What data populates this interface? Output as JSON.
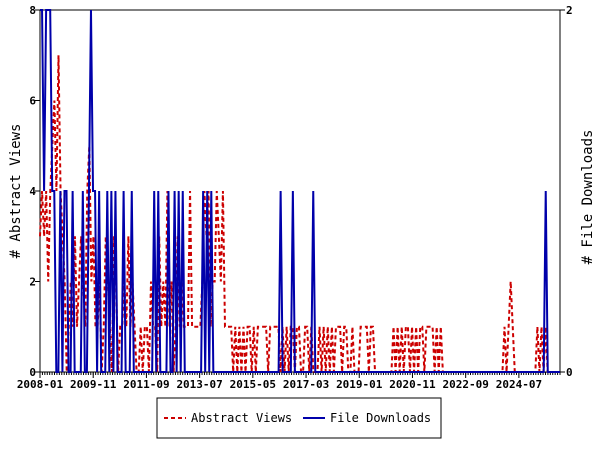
{
  "chart_data": {
    "type": "line",
    "title": "",
    "x_start": "2008-01",
    "x_end": "2025-12",
    "x_tick_labels": [
      "2008-01",
      "2009-11",
      "2011-09",
      "2013-07",
      "2015-05",
      "2017-03",
      "2019-01",
      "2020-11",
      "2022-09",
      "2024-07"
    ],
    "y_left_label": "# Abstract Views",
    "y_right_label": "# File Downloads",
    "y_left_range": [
      0,
      8
    ],
    "y_left_ticks": [
      "0",
      "2",
      "4",
      "6",
      "8"
    ],
    "y_right_range": [
      0,
      2
    ],
    "y_right_ticks": [
      "0",
      "2"
    ],
    "legend_position": "bottom-center",
    "series": [
      {
        "name": "Abstract Views",
        "axis": "left",
        "color": "#cc0000",
        "dash": "dashed",
        "values": [
          3,
          4,
          3,
          4,
          2,
          4,
          5,
          6,
          4,
          7,
          4,
          3,
          2,
          0,
          1,
          2,
          1,
          3,
          1,
          2,
          3,
          2,
          1,
          4,
          5,
          2,
          3,
          1,
          1,
          2,
          0,
          1,
          3,
          2,
          1,
          0,
          3,
          2,
          0,
          1,
          1,
          2,
          1,
          3,
          1,
          2,
          1,
          0,
          0,
          1,
          0,
          1,
          1,
          0,
          2,
          1,
          1,
          0,
          3,
          1,
          2,
          1,
          4,
          1,
          2,
          0,
          1,
          3,
          1,
          2,
          1,
          1,
          1,
          4,
          1,
          1,
          1,
          1,
          1,
          2,
          4,
          3,
          4,
          1,
          2,
          2,
          4,
          3,
          2,
          4,
          1,
          1,
          1,
          1,
          0,
          1,
          0,
          1,
          0,
          1,
          0,
          1,
          1,
          0,
          1,
          0,
          1,
          1,
          1,
          1,
          1,
          0,
          1,
          1,
          1,
          1,
          1,
          0,
          1,
          0,
          1,
          0,
          1,
          1,
          0,
          1,
          1,
          0,
          0,
          1,
          1,
          0,
          1,
          0,
          0,
          0,
          1,
          0,
          1,
          0,
          1,
          0,
          1,
          0,
          1,
          1,
          1,
          0,
          1,
          1,
          0,
          0,
          1,
          0,
          0,
          0,
          1,
          1,
          1,
          1,
          0,
          1,
          1,
          0,
          0,
          0,
          0,
          0,
          0,
          0,
          0,
          0,
          1,
          0,
          1,
          0,
          1,
          0,
          1,
          1,
          0,
          1,
          0,
          1,
          0,
          1,
          1,
          0,
          1,
          1,
          1,
          1,
          0,
          1,
          0,
          1,
          0,
          0,
          0,
          0,
          0,
          0,
          0,
          0,
          0,
          0,
          0,
          0,
          0,
          0,
          0,
          0,
          0,
          0,
          0,
          0,
          0,
          0,
          0,
          0,
          0,
          0,
          0,
          0,
          0,
          0,
          1,
          0,
          1,
          2,
          1,
          0,
          0,
          0,
          0,
          0,
          0,
          0,
          0,
          0,
          0,
          0,
          1,
          0,
          1,
          0,
          1,
          0,
          0,
          0,
          0,
          0,
          0,
          0
        ]
      },
      {
        "name": "File Downloads",
        "axis": "right",
        "color": "#0000aa",
        "dash": "solid",
        "values": [
          2,
          2,
          1,
          2,
          2,
          2,
          1,
          1,
          0,
          0,
          1,
          0,
          1,
          1,
          0,
          0,
          1,
          0,
          0,
          0,
          0,
          1,
          0,
          0,
          1,
          2,
          1,
          1,
          0,
          1,
          0,
          0,
          0,
          1,
          0,
          1,
          0,
          1,
          0,
          0,
          0,
          1,
          0,
          0,
          0,
          1,
          0,
          0,
          0,
          0,
          0,
          0,
          0,
          0,
          0,
          0,
          1,
          0,
          1,
          0,
          0,
          0,
          0,
          1,
          0,
          0,
          1,
          0,
          1,
          0,
          1,
          0,
          0,
          0,
          0,
          0,
          0,
          0,
          0,
          0,
          1,
          0,
          1,
          0,
          1,
          0,
          0,
          0,
          0,
          0,
          0,
          0,
          0,
          0,
          0,
          0,
          0,
          0,
          0,
          0,
          0,
          0,
          0,
          0,
          0,
          0,
          0,
          0,
          0,
          0,
          0,
          0,
          0,
          0,
          0,
          0,
          0,
          0,
          1,
          0,
          0,
          0,
          0,
          0,
          1,
          0,
          0,
          0,
          0,
          0,
          0,
          0,
          0,
          0,
          1,
          0,
          0,
          0,
          0,
          0,
          0,
          0,
          0,
          0,
          0,
          0,
          0,
          0,
          0,
          0,
          0,
          0,
          0,
          0,
          0,
          0,
          0,
          0,
          0,
          0,
          0,
          0,
          0,
          0,
          0,
          0,
          0,
          0,
          0,
          0,
          0,
          0,
          0,
          0,
          0,
          0,
          0,
          0,
          0,
          0,
          0,
          0,
          0,
          0,
          0,
          0,
          0,
          0,
          0,
          0,
          0,
          0,
          0,
          0,
          0,
          0,
          0,
          0,
          0,
          0,
          0,
          0,
          0,
          0,
          0,
          0,
          0,
          0,
          0,
          0,
          0,
          0,
          0,
          0,
          0,
          0,
          0,
          0,
          0,
          0,
          0,
          0,
          0,
          0,
          0,
          0,
          0,
          0,
          0,
          0,
          0,
          0,
          0,
          0,
          0,
          0,
          0,
          0,
          0,
          0,
          0,
          0,
          0,
          0,
          0,
          0,
          0,
          0,
          1,
          0,
          0,
          0,
          0,
          0,
          0,
          0
        ]
      }
    ]
  }
}
